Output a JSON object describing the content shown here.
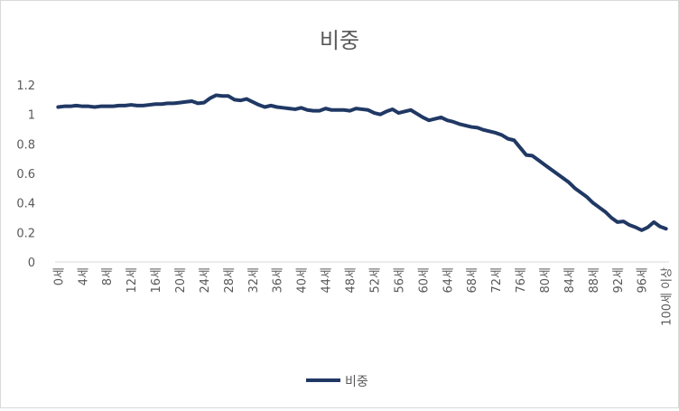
{
  "chart_data": {
    "type": "line",
    "title": "비중",
    "xlabel": "",
    "ylabel": "",
    "ylim": [
      0,
      1.2
    ],
    "yticks": [
      "0",
      "0.2",
      "0.4",
      "0.6",
      "0.8",
      "1",
      "1.2"
    ],
    "grid": false,
    "legend_position": "bottom",
    "series_color": "#203864",
    "x_tick_labels": [
      "0세",
      "4세",
      "8세",
      "12세",
      "16세",
      "20세",
      "24세",
      "28세",
      "32세",
      "36세",
      "40세",
      "44세",
      "48세",
      "52세",
      "56세",
      "60세",
      "64세",
      "68세",
      "72세",
      "76세",
      "80세",
      "84세",
      "88세",
      "92세",
      "96세",
      "100세 이상"
    ],
    "x_tick_every": 4,
    "x": [
      "0세",
      "1세",
      "2세",
      "3세",
      "4세",
      "5세",
      "6세",
      "7세",
      "8세",
      "9세",
      "10세",
      "11세",
      "12세",
      "13세",
      "14세",
      "15세",
      "16세",
      "17세",
      "18세",
      "19세",
      "20세",
      "21세",
      "22세",
      "23세",
      "24세",
      "25세",
      "26세",
      "27세",
      "28세",
      "29세",
      "30세",
      "31세",
      "32세",
      "33세",
      "34세",
      "35세",
      "36세",
      "37세",
      "38세",
      "39세",
      "40세",
      "41세",
      "42세",
      "43세",
      "44세",
      "45세",
      "46세",
      "47세",
      "48세",
      "49세",
      "50세",
      "51세",
      "52세",
      "53세",
      "54세",
      "55세",
      "56세",
      "57세",
      "58세",
      "59세",
      "60세",
      "61세",
      "62세",
      "63세",
      "64세",
      "65세",
      "66세",
      "67세",
      "68세",
      "69세",
      "70세",
      "71세",
      "72세",
      "73세",
      "74세",
      "75세",
      "76세",
      "77세",
      "78세",
      "79세",
      "80세",
      "81세",
      "82세",
      "83세",
      "84세",
      "85세",
      "86세",
      "87세",
      "88세",
      "89세",
      "90세",
      "91세",
      "92세",
      "93세",
      "94세",
      "95세",
      "96세",
      "97세",
      "98세",
      "99세",
      "100세 이상"
    ],
    "series": [
      {
        "name": "비중",
        "values": [
          1.05,
          1.055,
          1.055,
          1.06,
          1.055,
          1.055,
          1.05,
          1.055,
          1.055,
          1.055,
          1.06,
          1.06,
          1.065,
          1.06,
          1.06,
          1.065,
          1.07,
          1.07,
          1.075,
          1.075,
          1.08,
          1.085,
          1.09,
          1.075,
          1.08,
          1.11,
          1.13,
          1.125,
          1.125,
          1.1,
          1.095,
          1.105,
          1.085,
          1.065,
          1.05,
          1.06,
          1.05,
          1.045,
          1.04,
          1.035,
          1.045,
          1.03,
          1.025,
          1.025,
          1.04,
          1.03,
          1.03,
          1.03,
          1.025,
          1.04,
          1.035,
          1.03,
          1.01,
          1.0,
          1.02,
          1.035,
          1.01,
          1.02,
          1.03,
          1.005,
          0.98,
          0.96,
          0.97,
          0.98,
          0.96,
          0.95,
          0.935,
          0.925,
          0.915,
          0.91,
          0.895,
          0.885,
          0.875,
          0.86,
          0.835,
          0.825,
          0.775,
          0.725,
          0.72,
          0.69,
          0.66,
          0.63,
          0.6,
          0.57,
          0.54,
          0.5,
          0.47,
          0.44,
          0.4,
          0.37,
          0.34,
          0.3,
          0.27,
          0.275,
          0.25,
          0.235,
          0.215,
          0.235,
          0.27,
          0.24,
          0.225
        ]
      }
    ]
  }
}
